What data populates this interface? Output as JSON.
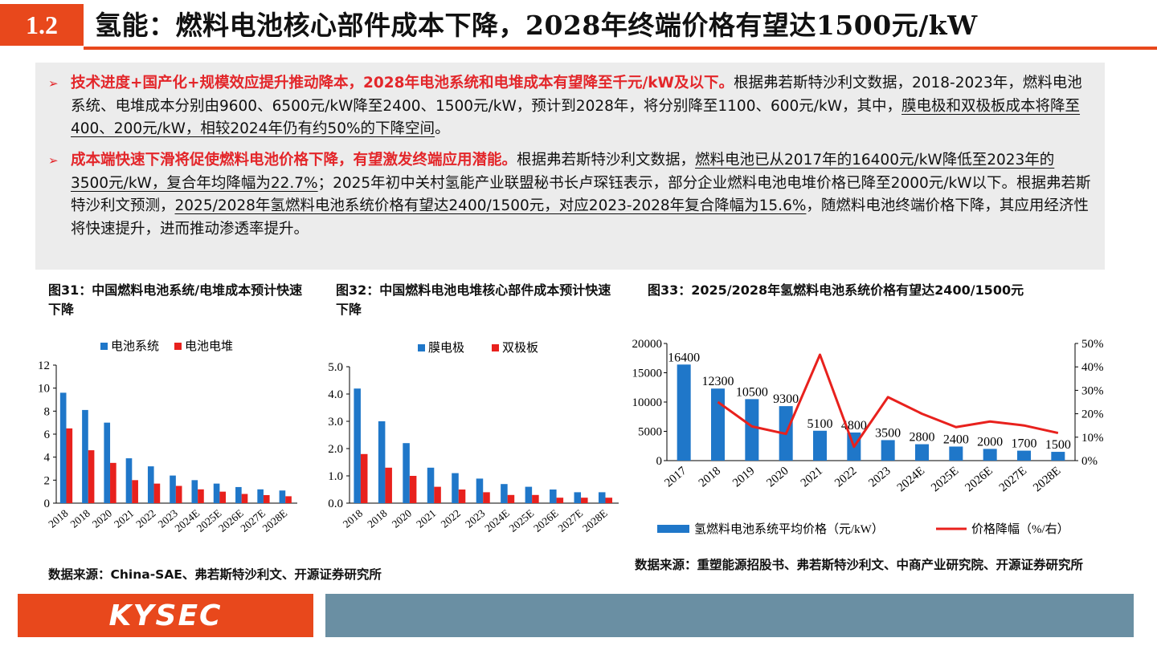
{
  "header": {
    "section_number": "1.2",
    "title": "氢能：燃料电池核心部件成本下降，2028年终端价格有望达1500元/kW"
  },
  "summary": {
    "bullet1": {
      "lead": "技术进度+国产化+规模效应提升推动降本，2028年电池系统和电堆成本有望降至千元/kW及以下。",
      "text_a": "根据弗若斯特沙利文数据，2018-2023年，燃料电池系统、电堆成本分别由9600、6500元/kW降至2400、1500元/kW，预计到2028年，将分别降至1100、600元/kW，其中，",
      "underline": "膜电极和双极板成本将降至400、200元/kW，相较2024年仍有约50%的下降空间",
      "text_b": "。"
    },
    "bullet2": {
      "lead": "成本端快速下滑将促使燃料电池价格下降，有望激发终端应用潜能。",
      "text_a": "根据弗若斯特沙利文数据，",
      "underline1": "燃料电池已从2017年的16400元/kW降低至2023年的3500元/kW，复合年均降幅为22.7%",
      "text_b": "；2025年初中关村氢能产业联盟秘书长卢琛钰表示，部分企业燃料电池电堆价格已降至2000元/kW以下。根据弗若斯特沙利文预测，",
      "underline2": "2025/2028年氢燃料电池系统价格有望达2400/1500元，对应2023-2028年复合降幅为15.6%",
      "text_c": "，随燃料电池终端价格下降，其应用经济性将快速提升，进而推动渗透率提升。"
    }
  },
  "figure31": {
    "caption": "图31：中国燃料电池系统/电堆成本预计快速下降",
    "chart_data": {
      "type": "bar",
      "categories": [
        "2018",
        "2018",
        "2020",
        "2021",
        "2022",
        "2023",
        "2024E",
        "2025E",
        "2026E",
        "2027E",
        "2028E"
      ],
      "series": [
        {
          "name": "电池系统",
          "color": "#1f77c9",
          "values": [
            9.6,
            8.1,
            7.0,
            3.9,
            3.2,
            2.4,
            2.0,
            1.7,
            1.4,
            1.2,
            1.1
          ]
        },
        {
          "name": "电池电堆",
          "color": "#e8211d",
          "values": [
            6.5,
            4.6,
            3.5,
            2.0,
            1.7,
            1.5,
            1.2,
            1.0,
            0.8,
            0.7,
            0.6
          ]
        }
      ],
      "yticks": [
        "0",
        "2",
        "4",
        "6",
        "8",
        "10",
        "12"
      ],
      "ylim": [
        0,
        12
      ]
    }
  },
  "figure32": {
    "caption": "图32：中国燃料电池电堆核心部件成本预计快速下降",
    "chart_data": {
      "type": "bar",
      "categories": [
        "2018",
        "2018",
        "2020",
        "2021",
        "2022",
        "2023",
        "2024E",
        "2025E",
        "2026E",
        "2027E",
        "2028E"
      ],
      "series": [
        {
          "name": "膜电极",
          "color": "#1f77c9",
          "values": [
            4.2,
            3.0,
            2.2,
            1.3,
            1.1,
            0.9,
            0.7,
            0.6,
            0.5,
            0.4,
            0.4
          ]
        },
        {
          "name": "双极板",
          "color": "#e8211d",
          "values": [
            1.8,
            1.3,
            1.0,
            0.6,
            0.5,
            0.4,
            0.3,
            0.3,
            0.2,
            0.2,
            0.2
          ]
        }
      ],
      "yticks": [
        "0.0",
        "1.0",
        "2.0",
        "3.0",
        "4.0",
        "5.0"
      ],
      "ylim": [
        0,
        5
      ]
    }
  },
  "figure33": {
    "caption": "图33：2025/2028年氢燃料电池系统价格有望达2400/1500元",
    "chart_data": {
      "type": "bar+line",
      "categories": [
        "2017",
        "2018",
        "2019",
        "2020",
        "2021",
        "2022",
        "2023",
        "2024E",
        "2025E",
        "2026E",
        "2027E",
        "2028E"
      ],
      "series": [
        {
          "name": "氢燃料电池系统平均价格（元/kW）",
          "type": "bar",
          "color": "#1f77c9",
          "values": [
            16400,
            12300,
            10500,
            9300,
            5100,
            4800,
            3500,
            2800,
            2400,
            2000,
            1700,
            1500
          ],
          "labels": [
            "16400",
            "12300",
            "10500",
            "9300",
            "5100",
            "4800",
            "3500",
            "2800",
            "2400",
            "2000",
            "1700",
            "1500"
          ]
        },
        {
          "name": "价格降幅（%/右）",
          "type": "line",
          "color": "#e8211d",
          "values": [
            null,
            25,
            14.6,
            11.4,
            45.2,
            5.9,
            27.1,
            20,
            14.3,
            16.7,
            15,
            11.8
          ]
        }
      ],
      "yticks_left": [
        "0",
        "5000",
        "10000",
        "15000",
        "20000"
      ],
      "ylim_left": [
        0,
        20000
      ],
      "yticks_right": [
        "0%",
        "10%",
        "20%",
        "30%",
        "40%",
        "50%"
      ],
      "ylim_right": [
        0,
        50
      ]
    }
  },
  "sources": {
    "left": "数据来源：China-SAE、弗若斯特沙利文、开源证券研究所",
    "right": "数据来源：重塑能源招股书、弗若斯特沙利文、中商产业研究院、开源证券研究所"
  },
  "footer": {
    "logo": "KYSEC"
  }
}
